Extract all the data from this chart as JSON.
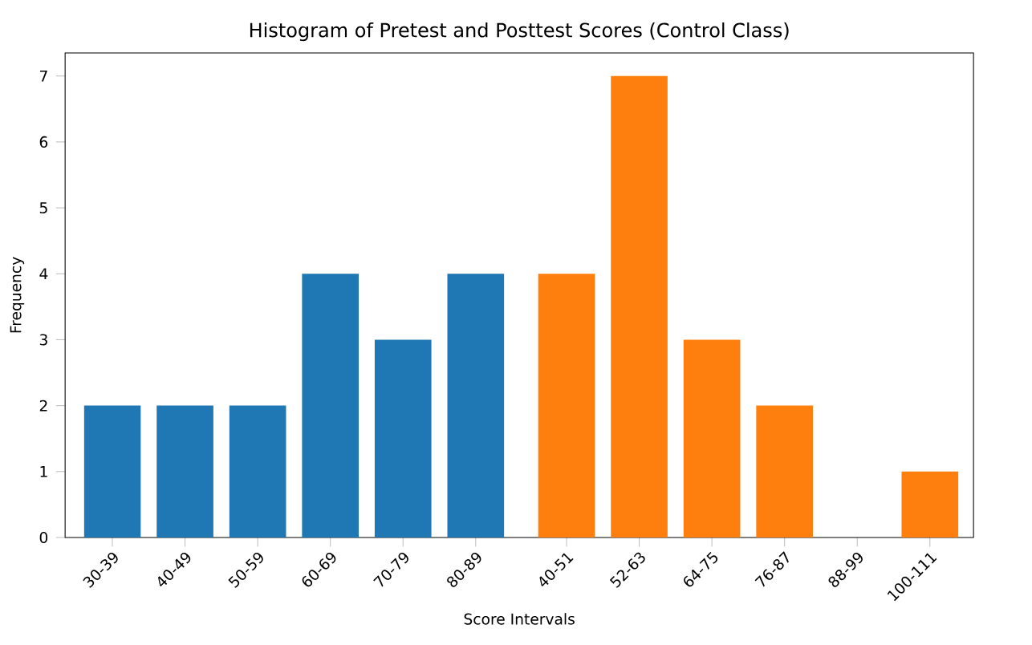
{
  "chart_data": {
    "type": "bar",
    "title": "Histogram of Pretest and Posttest Scores (Control Class)",
    "xlabel": "Score Intervals",
    "ylabel": "Frequency",
    "categories": [
      "30-39",
      "40-49",
      "50-59",
      "60-69",
      "70-79",
      "80-89",
      "40-51",
      "52-63",
      "64-75",
      "76-87",
      "88-99",
      "100-111"
    ],
    "series": [
      {
        "color": "#1f77b4",
        "values": [
          2,
          2,
          2,
          4,
          3,
          4,
          null,
          null,
          null,
          null,
          null,
          null
        ]
      },
      {
        "color": "#ff7f0e",
        "values": [
          null,
          null,
          null,
          null,
          null,
          null,
          4,
          7,
          3,
          2,
          0,
          1
        ]
      }
    ],
    "ylim": [
      0,
      7.35
    ],
    "yticks": [
      0,
      1,
      2,
      3,
      4,
      5,
      6,
      7
    ],
    "grid": false
  }
}
